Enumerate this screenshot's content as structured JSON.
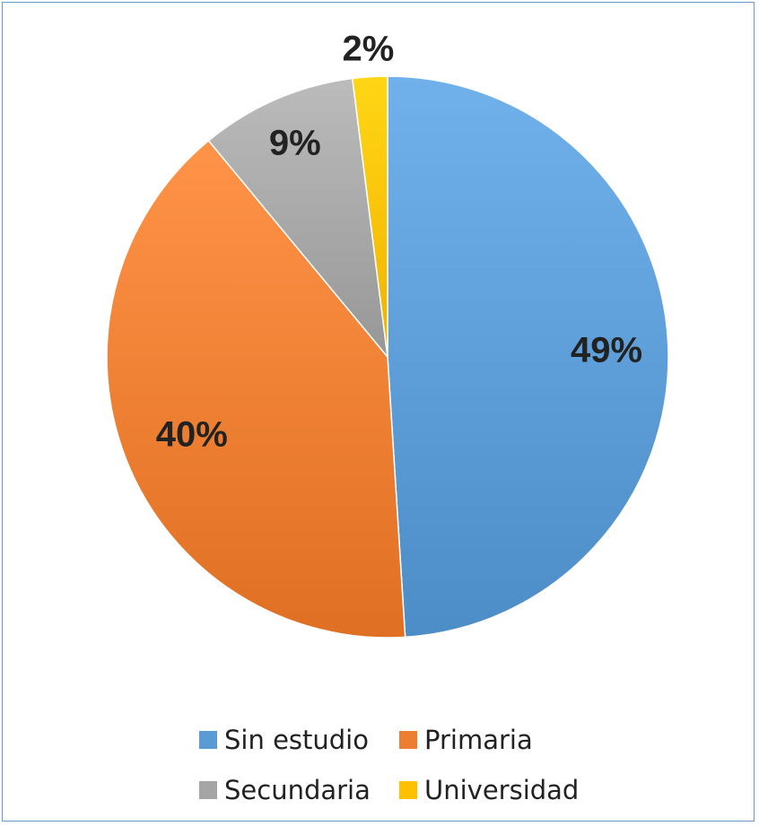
{
  "chart_data": {
    "type": "pie",
    "title": "",
    "categories": [
      "Sin estudio",
      "Primaria",
      "Secundaria",
      "Universidad"
    ],
    "values": [
      49,
      40,
      9,
      2
    ],
    "data_labels": [
      "49%",
      "40%",
      "9%",
      "2%"
    ],
    "colors": [
      "#5b9bd5",
      "#ed7d31",
      "#a5a5a5",
      "#ffc000"
    ],
    "start_angle_deg": 0,
    "direction": "clockwise",
    "legend": {
      "position": "bottom",
      "entries": [
        "Sin estudio",
        "Primaria",
        "Secundaria",
        "Universidad"
      ]
    }
  }
}
